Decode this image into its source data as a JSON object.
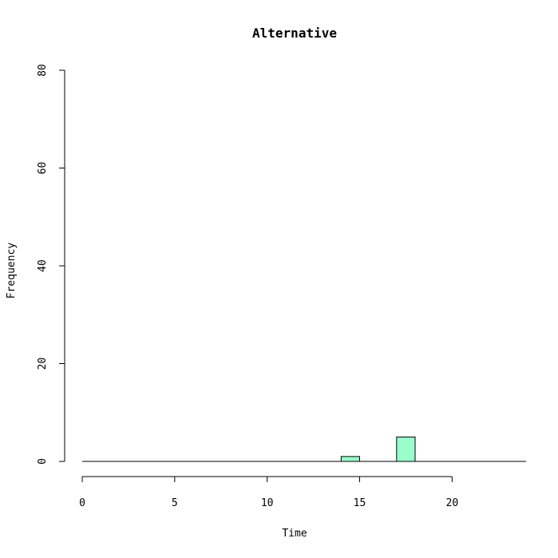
{
  "chart_data": {
    "type": "bar",
    "title": "Alternative",
    "xlabel": "Time",
    "ylabel": "Frequency",
    "xlim": [
      0,
      24
    ],
    "ylim": [
      0,
      80
    ],
    "x_ticks": [
      0,
      5,
      10,
      15,
      20
    ],
    "y_ticks": [
      0,
      20,
      40,
      60,
      80
    ],
    "bin_width": 1,
    "bins": [
      {
        "start": 14,
        "end": 15,
        "value": 1
      },
      {
        "start": 17,
        "end": 18,
        "value": 5
      }
    ],
    "bar_color": "#99ffcc",
    "grid": false,
    "legend": false
  }
}
